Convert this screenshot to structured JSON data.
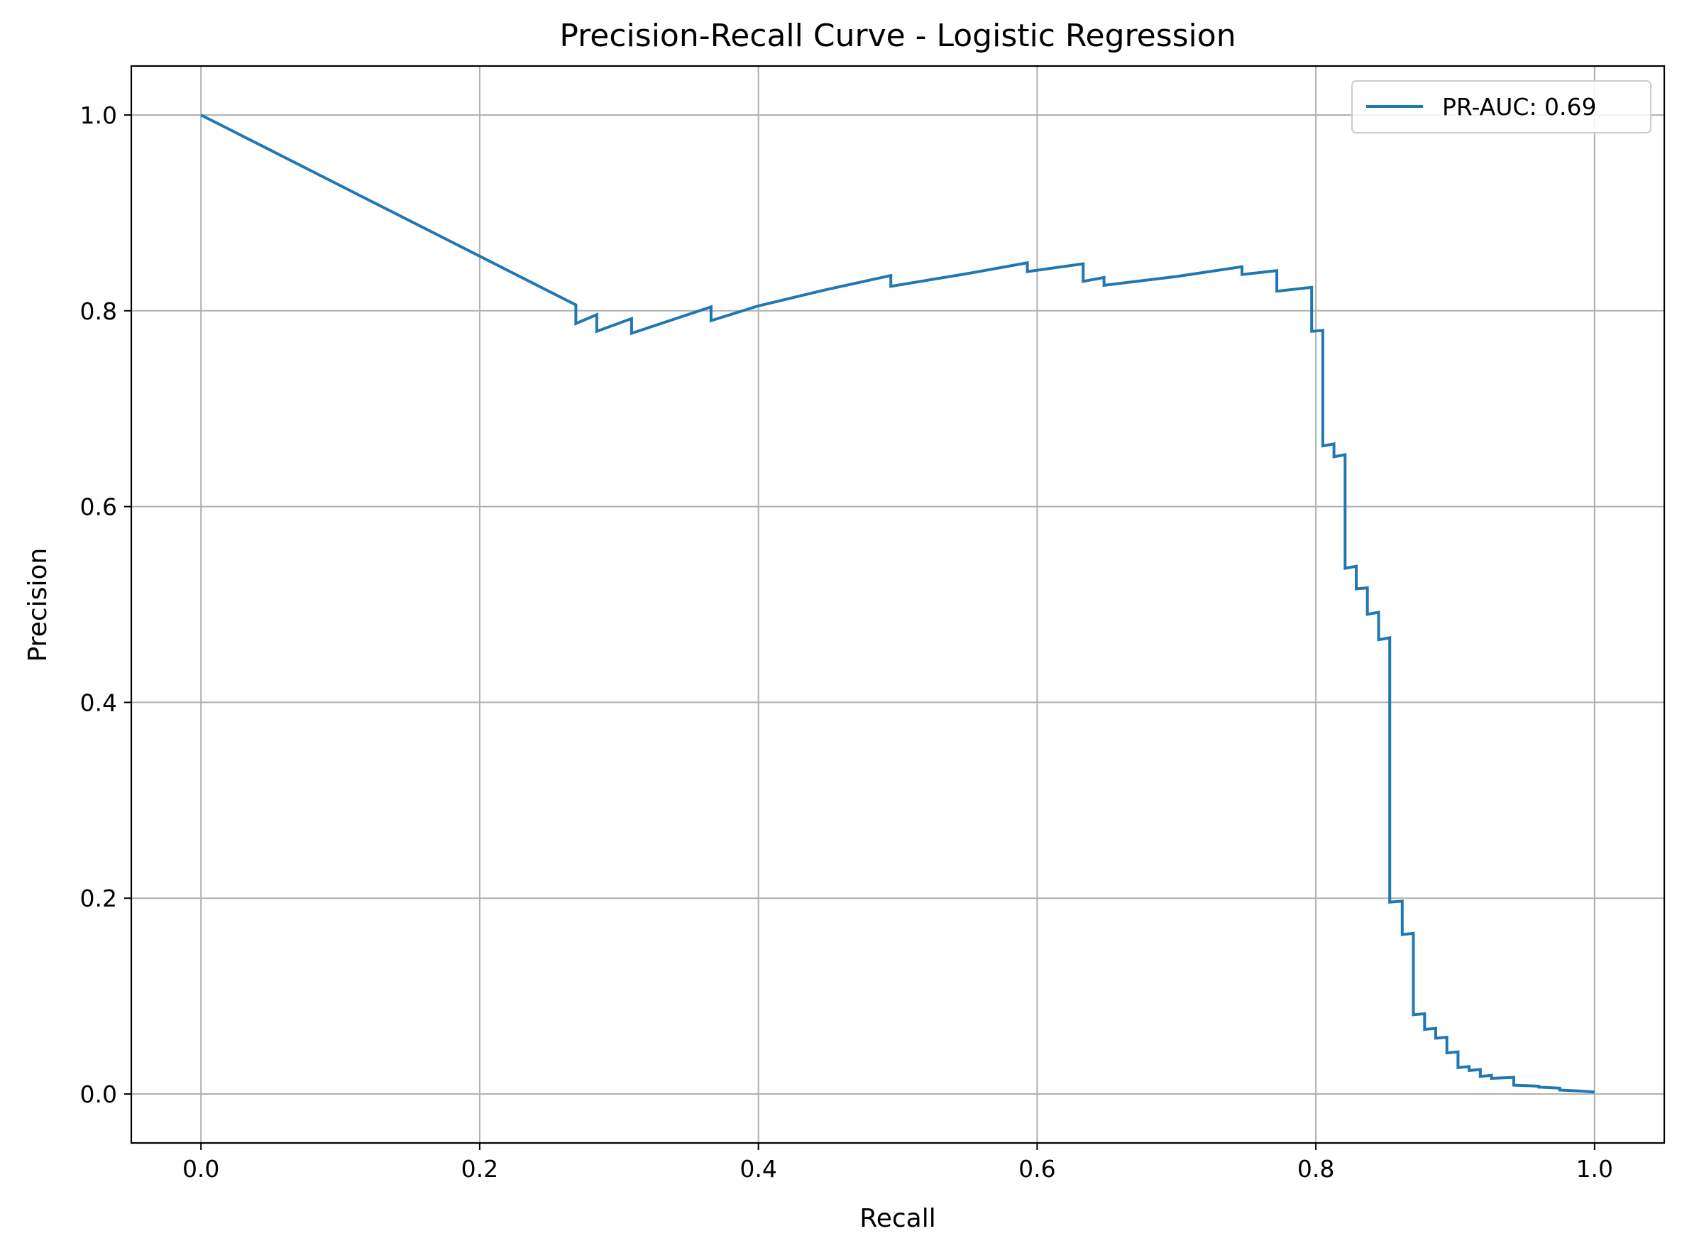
{
  "chart_data": {
    "type": "line",
    "title": "Precision-Recall Curve - Logistic Regression",
    "xlabel": "Recall",
    "ylabel": "Precision",
    "xlim": [
      -0.05,
      1.05
    ],
    "ylim": [
      -0.05,
      1.05
    ],
    "xticks": [
      "0.0",
      "0.2",
      "0.4",
      "0.6",
      "0.8",
      "1.0"
    ],
    "yticks": [
      "0.0",
      "0.2",
      "0.4",
      "0.6",
      "0.8",
      "1.0"
    ],
    "grid": true,
    "legend_position": "top-right",
    "series": [
      {
        "name": "PR-AUC: 0.69",
        "color": "#1f77b4",
        "x": [
          0.0,
          0.269,
          0.269,
          0.284,
          0.284,
          0.309,
          0.309,
          0.366,
          0.366,
          0.4,
          0.45,
          0.495,
          0.495,
          0.55,
          0.593,
          0.593,
          0.633,
          0.633,
          0.648,
          0.648,
          0.7,
          0.747,
          0.747,
          0.772,
          0.772,
          0.797,
          0.797,
          0.805,
          0.805,
          0.813,
          0.813,
          0.821,
          0.821,
          0.829,
          0.829,
          0.837,
          0.837,
          0.845,
          0.845,
          0.853,
          0.853,
          0.862,
          0.862,
          0.87,
          0.87,
          0.878,
          0.878,
          0.886,
          0.886,
          0.894,
          0.894,
          0.902,
          0.902,
          0.91,
          0.91,
          0.918,
          0.918,
          0.926,
          0.926,
          0.942,
          0.942,
          0.96,
          0.96,
          0.975,
          0.975,
          0.99,
          1.0
        ],
        "y": [
          1.0,
          0.806,
          0.787,
          0.796,
          0.779,
          0.792,
          0.777,
          0.804,
          0.79,
          0.805,
          0.822,
          0.836,
          0.825,
          0.838,
          0.849,
          0.84,
          0.848,
          0.83,
          0.834,
          0.826,
          0.835,
          0.845,
          0.837,
          0.841,
          0.82,
          0.824,
          0.779,
          0.78,
          0.662,
          0.664,
          0.651,
          0.653,
          0.537,
          0.539,
          0.516,
          0.517,
          0.49,
          0.492,
          0.464,
          0.466,
          0.196,
          0.197,
          0.163,
          0.164,
          0.081,
          0.082,
          0.066,
          0.067,
          0.057,
          0.058,
          0.042,
          0.043,
          0.027,
          0.028,
          0.024,
          0.025,
          0.018,
          0.019,
          0.016,
          0.017,
          0.009,
          0.008,
          0.007,
          0.006,
          0.004,
          0.003,
          0.002
        ]
      }
    ]
  }
}
